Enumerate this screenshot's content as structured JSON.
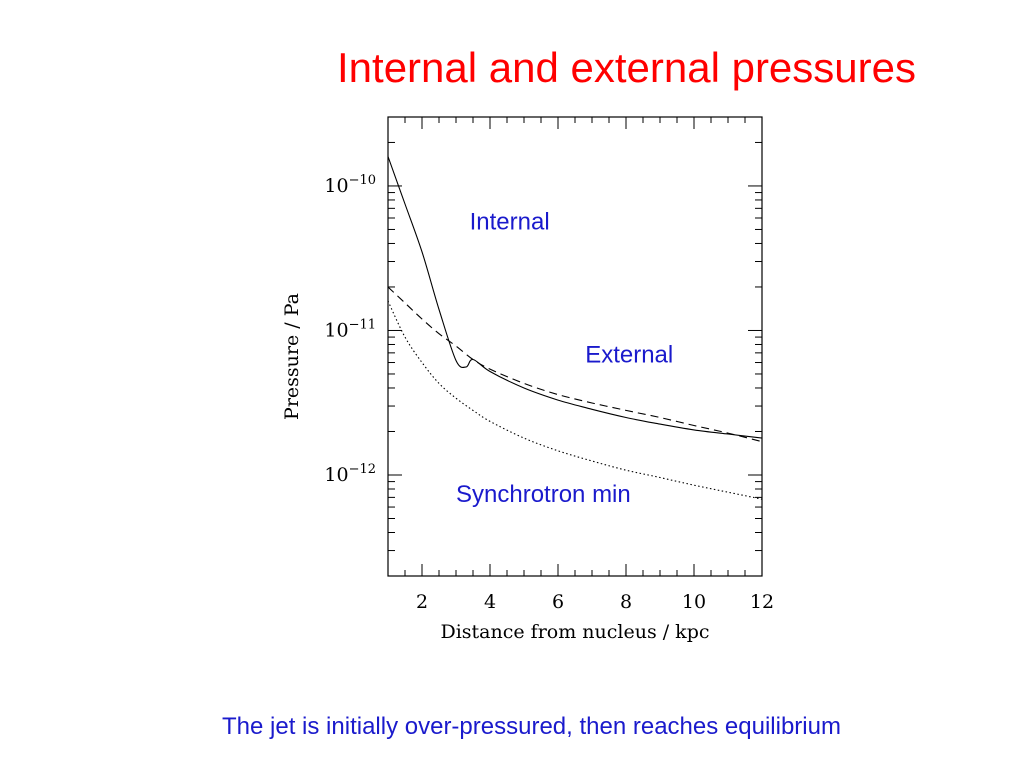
{
  "slide": {
    "title": "Internal and external pressures",
    "caption": "The jet is initially over-pressured, then reaches equilibrium"
  },
  "chart_data": {
    "type": "line",
    "xlabel": "Distance from nucleus / kpc",
    "ylabel": "Pressure / Pa",
    "xlim": [
      1,
      12
    ],
    "ylim": [
      2e-13,
      3e-10
    ],
    "yscale": "log",
    "x_ticks": [
      2,
      4,
      6,
      8,
      10,
      12
    ],
    "y_tick_labels": [
      {
        "value": 1e-10,
        "base": "10",
        "exp": "−10"
      },
      {
        "value": 1e-11,
        "base": "10",
        "exp": "−11"
      },
      {
        "value": 1e-12,
        "base": "10",
        "exp": "−12"
      }
    ],
    "annotations": [
      {
        "text": "Internal",
        "x": 3.4,
        "y": 5e-11
      },
      {
        "text": "External",
        "x": 6.8,
        "y": 6e-12
      },
      {
        "text": "Synchrotron min",
        "x": 3.0,
        "y": 6.5e-13
      }
    ],
    "series": [
      {
        "style": "solid",
        "x": [
          1.0,
          1.5,
          2.0,
          2.5,
          3.0,
          3.3,
          3.5,
          4.0,
          5.0,
          6.0,
          7.0,
          8.0,
          9.0,
          10.0,
          11.0,
          12.0
        ],
        "y": [
          1.6e-10,
          7.5e-11,
          3.5e-11,
          1.4e-11,
          6.2e-12,
          5.6e-12,
          6.3e-12,
          5.2e-12,
          4e-12,
          3.3e-12,
          2.85e-12,
          2.5e-12,
          2.25e-12,
          2.05e-12,
          1.92e-12,
          1.8e-12
        ]
      },
      {
        "style": "dashed",
        "x": [
          1.0,
          1.5,
          2.0,
          2.5,
          3.0,
          3.5,
          4.0,
          5.0,
          6.0,
          7.0,
          8.0,
          9.0,
          10.0,
          11.0,
          12.0
        ],
        "y": [
          2e-11,
          1.55e-11,
          1.2e-11,
          9.5e-12,
          7.8e-12,
          6.3e-12,
          5.4e-12,
          4.3e-12,
          3.6e-12,
          3.15e-12,
          2.8e-12,
          2.5e-12,
          2.2e-12,
          1.95e-12,
          1.7e-12
        ]
      },
      {
        "style": "dotted",
        "x": [
          1.0,
          1.5,
          2.0,
          2.5,
          3.0,
          3.5,
          4.0,
          5.0,
          6.0,
          7.0,
          8.0,
          9.0,
          10.0,
          11.0,
          12.0
        ],
        "y": [
          1.6e-11,
          9e-12,
          6e-12,
          4.3e-12,
          3.4e-12,
          2.8e-12,
          2.35e-12,
          1.8e-12,
          1.47e-12,
          1.25e-12,
          1.08e-12,
          9.6e-13,
          8.5e-13,
          7.6e-13,
          6.8e-13
        ]
      }
    ],
    "colors": {
      "line": "#000000",
      "annotation": "#1a1acc"
    },
    "grid": false,
    "legend": "none"
  }
}
